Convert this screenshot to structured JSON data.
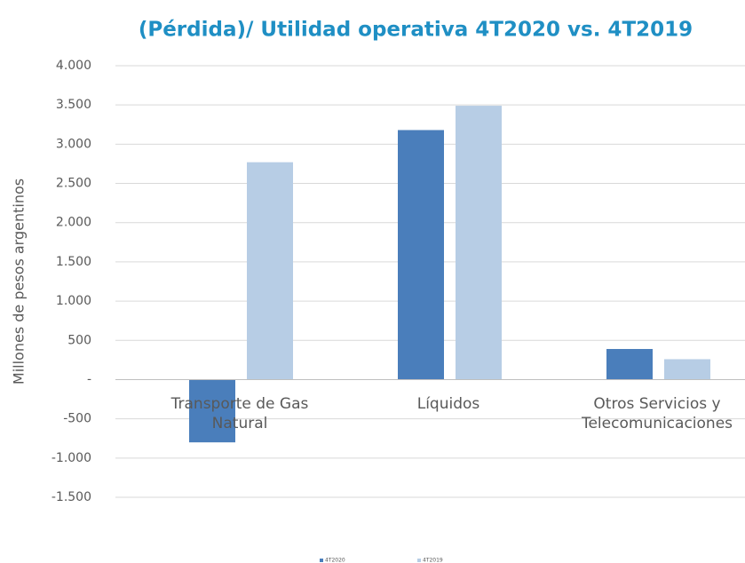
{
  "chart_data": {
    "type": "bar",
    "title": "(Pérdida)/ Utilidad operativa 4T2020 vs. 4T2019",
    "y_label": "Millones de pesos argentinos",
    "categories": [
      "Transporte de Gas Natural",
      "Líquidos",
      "Otros Servicios y Telecomunicaciones"
    ],
    "series": [
      {
        "name": "4T2020",
        "color": "#4a7ebb",
        "values": [
          -800,
          3180,
          390
        ]
      },
      {
        "name": "4T2019",
        "color": "#b7cde5",
        "values": [
          2770,
          3490,
          260
        ]
      }
    ],
    "ylim": [
      -1500,
      4000
    ],
    "yticks": [
      {
        "value": -1500,
        "label": "-1.500"
      },
      {
        "value": -1000,
        "label": "-1.000"
      },
      -500,
      {
        "value": 0,
        "label": "-"
      },
      500,
      {
        "value": 1000,
        "label": "1.000"
      },
      {
        "value": 1500,
        "label": "1.500"
      },
      {
        "value": 2000,
        "label": "2.000"
      },
      {
        "value": 2500,
        "label": "2.500"
      },
      {
        "value": 3000,
        "label": "3.000"
      },
      {
        "value": 3500,
        "label": "3.500"
      },
      {
        "value": 4000,
        "label": "4.000"
      }
    ],
    "grid": true,
    "legend": "bottom"
  }
}
